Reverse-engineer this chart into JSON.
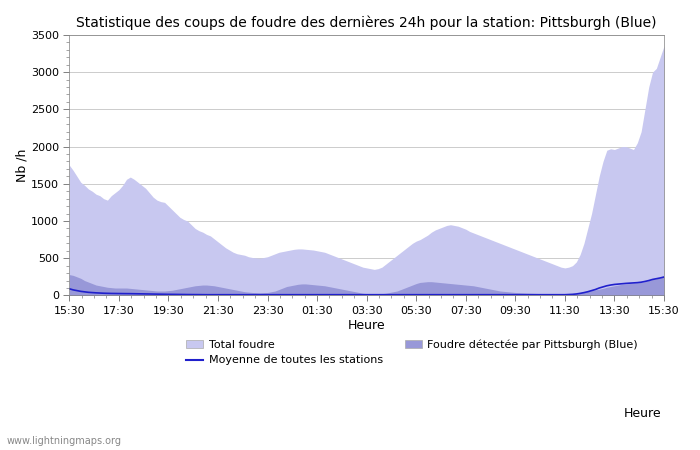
{
  "title": "Statistique des coups de foudre des dernières 24h pour la station: Pittsburgh (Blue)",
  "xlabel": "Heure",
  "ylabel": "Nb /h",
  "watermark": "www.lightningmaps.org",
  "x_ticks": [
    "15:30",
    "17:30",
    "19:30",
    "21:30",
    "23:30",
    "01:30",
    "03:30",
    "05:30",
    "07:30",
    "09:30",
    "11:30",
    "13:30",
    "15:30"
  ],
  "ylim": [
    0,
    3500
  ],
  "yticks": [
    0,
    500,
    1000,
    1500,
    2000,
    2500,
    3000,
    3500
  ],
  "color_total": "#c8c8f0",
  "color_detected": "#9898d8",
  "color_mean": "#2020cc",
  "total_foudre": [
    1750,
    1680,
    1600,
    1520,
    1480,
    1430,
    1400,
    1360,
    1340,
    1300,
    1280,
    1340,
    1380,
    1420,
    1480,
    1560,
    1590,
    1560,
    1520,
    1480,
    1440,
    1380,
    1320,
    1280,
    1260,
    1250,
    1200,
    1150,
    1100,
    1050,
    1020,
    1000,
    950,
    900,
    870,
    850,
    820,
    800,
    760,
    720,
    680,
    640,
    610,
    580,
    560,
    550,
    540,
    520,
    510,
    505,
    500,
    510,
    520,
    540,
    560,
    580,
    590,
    600,
    610,
    620,
    625,
    625,
    620,
    615,
    610,
    600,
    590,
    580,
    560,
    540,
    520,
    500,
    480,
    460,
    440,
    420,
    400,
    380,
    370,
    360,
    350,
    360,
    380,
    420,
    460,
    500,
    540,
    580,
    620,
    660,
    700,
    730,
    750,
    780,
    810,
    850,
    880,
    900,
    920,
    940,
    950,
    940,
    930,
    910,
    890,
    860,
    840,
    820,
    800,
    780,
    760,
    740,
    720,
    700,
    680,
    660,
    640,
    620,
    600,
    580,
    560,
    540,
    520,
    500,
    480,
    460,
    440,
    420,
    400,
    380,
    370,
    380,
    400,
    450,
    550,
    700,
    900,
    1100,
    1350,
    1600,
    1800,
    1950,
    1970,
    1960,
    1980,
    2000,
    2000,
    1980,
    1960,
    2050,
    2200,
    2500,
    2800,
    3000,
    3050,
    3200,
    3350
  ],
  "detected_pittsburgh": [
    280,
    270,
    250,
    230,
    200,
    180,
    160,
    140,
    130,
    120,
    110,
    105,
    100,
    100,
    100,
    100,
    95,
    90,
    85,
    80,
    75,
    70,
    65,
    60,
    60,
    60,
    65,
    70,
    80,
    90,
    100,
    110,
    120,
    130,
    135,
    140,
    140,
    135,
    130,
    120,
    110,
    100,
    90,
    80,
    70,
    60,
    50,
    45,
    40,
    38,
    35,
    38,
    40,
    50,
    60,
    80,
    100,
    120,
    130,
    140,
    150,
    155,
    155,
    150,
    145,
    140,
    135,
    130,
    120,
    110,
    100,
    90,
    80,
    70,
    60,
    50,
    40,
    30,
    25,
    20,
    18,
    20,
    25,
    30,
    40,
    50,
    60,
    80,
    100,
    120,
    140,
    160,
    175,
    180,
    185,
    185,
    180,
    175,
    170,
    165,
    160,
    155,
    150,
    145,
    140,
    135,
    130,
    120,
    110,
    100,
    90,
    80,
    70,
    60,
    55,
    50,
    45,
    40,
    38,
    35,
    32,
    30,
    28,
    26,
    24,
    22,
    20,
    18,
    16,
    15,
    15,
    18,
    22,
    28,
    35,
    45,
    55,
    65,
    75,
    85,
    95,
    110,
    120,
    130,
    140,
    150,
    155,
    160,
    165,
    170,
    175,
    185,
    200,
    215,
    225,
    235,
    255
  ],
  "mean_all_stations": [
    90,
    75,
    65,
    55,
    48,
    42,
    38,
    35,
    32,
    30,
    28,
    27,
    26,
    25,
    25,
    25,
    24,
    23,
    22,
    22,
    21,
    20,
    19,
    18,
    17,
    16,
    15,
    15,
    14,
    13,
    13,
    12,
    12,
    11,
    11,
    10,
    10,
    10,
    10,
    10,
    9,
    9,
    9,
    9,
    9,
    9,
    9,
    9,
    9,
    9,
    9,
    9,
    9,
    9,
    10,
    10,
    10,
    10,
    11,
    11,
    11,
    11,
    11,
    11,
    11,
    11,
    11,
    11,
    11,
    11,
    11,
    11,
    11,
    11,
    11,
    11,
    11,
    11,
    10,
    10,
    10,
    10,
    10,
    10,
    10,
    10,
    10,
    10,
    10,
    10,
    10,
    10,
    10,
    10,
    10,
    10,
    10,
    10,
    10,
    10,
    10,
    10,
    10,
    10,
    10,
    10,
    10,
    10,
    10,
    10,
    10,
    10,
    10,
    10,
    10,
    10,
    10,
    10,
    10,
    10,
    10,
    10,
    10,
    10,
    10,
    10,
    10,
    10,
    10,
    10,
    10,
    12,
    15,
    20,
    28,
    38,
    50,
    65,
    80,
    100,
    115,
    130,
    140,
    148,
    153,
    158,
    162,
    165,
    168,
    172,
    178,
    188,
    200,
    215,
    225,
    235,
    248
  ]
}
